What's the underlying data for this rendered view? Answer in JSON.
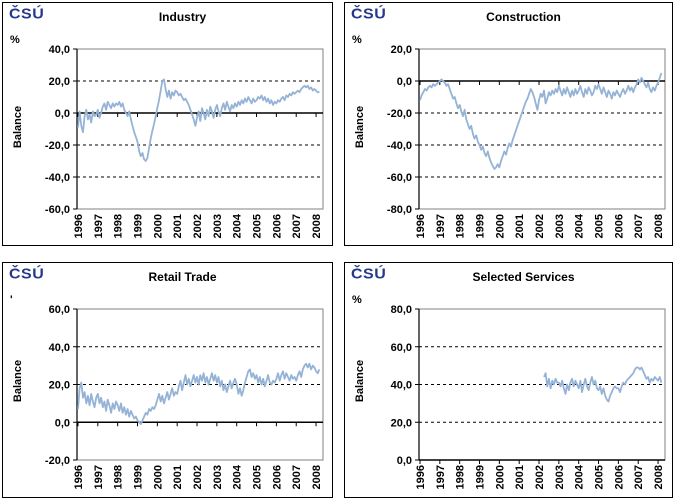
{
  "branding": {
    "logo_text": "ČSÚ",
    "logo_color": "#24388C"
  },
  "colors": {
    "line": "#95B3D7",
    "axis": "#000000",
    "grid": "#000000",
    "plot_border": "#808080",
    "panel_border": "#000000",
    "background": "#ffffff"
  },
  "chart_data": [
    {
      "type": "line",
      "title": "Industry",
      "unit_label": "%",
      "ylabel": "Balance",
      "ylim": [
        -60,
        40
      ],
      "yticks": [
        40,
        20,
        0,
        -20,
        -40,
        -60
      ],
      "ytick_labels": [
        "40,0",
        "20,0",
        "0,0",
        "-20,0",
        "-40,0",
        "-60,0"
      ],
      "xlim": [
        1995.95,
        2008.35
      ],
      "x_tick_labels": [
        "1996",
        "1997",
        "1998",
        "1999",
        "2000",
        "2001",
        "2002",
        "2003",
        "2004",
        "2005",
        "2006",
        "2007",
        "2008"
      ],
      "grid": "dashed-horizontal",
      "legend": "none",
      "series": [
        {
          "start_year": 1996.0,
          "points_per_year": 12,
          "values": [
            -9,
            1,
            -8,
            -12,
            -2,
            2,
            -4,
            -1,
            -6,
            1,
            -2,
            -1,
            2,
            -3,
            0,
            4,
            6,
            2,
            7,
            5,
            3,
            6,
            4,
            6,
            5,
            7,
            4,
            6,
            2,
            0,
            -2,
            1,
            -4,
            -8,
            -12,
            -15,
            -18,
            -24,
            -27,
            -25,
            -29,
            -30,
            -28,
            -22,
            -16,
            -11,
            -7,
            -2,
            3,
            8,
            14,
            20,
            21,
            15,
            10,
            14,
            9,
            13,
            11,
            14,
            13,
            11,
            12,
            10,
            8,
            9,
            7,
            5,
            2,
            -1,
            -4,
            -8,
            -3,
            1,
            -5,
            3,
            0,
            -4,
            2,
            -2,
            4,
            1,
            -3,
            2,
            5,
            1,
            -2,
            3,
            6,
            2,
            7,
            4,
            1,
            5,
            3,
            6,
            4,
            7,
            5,
            8,
            6,
            9,
            7,
            10,
            8,
            6,
            9,
            7,
            8,
            10,
            9,
            11,
            8,
            10,
            7,
            9,
            6,
            8,
            5,
            7,
            6,
            8,
            7,
            9,
            10,
            8,
            11,
            10,
            12,
            11,
            13,
            12,
            13,
            14,
            13,
            15,
            16,
            17,
            16,
            17,
            15,
            16,
            14,
            15,
            14,
            13,
            13
          ]
        }
      ]
    },
    {
      "type": "line",
      "title": "Construction",
      "unit_label": "%",
      "ylabel": "Balance",
      "ylim": [
        -80,
        20
      ],
      "yticks": [
        20,
        0,
        -20,
        -40,
        -60,
        -80
      ],
      "ytick_labels": [
        "20,0",
        "0,0",
        "-20,0",
        "-40,0",
        "-60,0",
        "-80,0"
      ],
      "xlim": [
        1995.95,
        2008.35
      ],
      "x_tick_labels": [
        "1996",
        "1997",
        "1998",
        "1999",
        "2000",
        "2001",
        "2002",
        "2003",
        "2004",
        "2005",
        "2006",
        "2007",
        "2008"
      ],
      "grid": "dashed-horizontal",
      "legend": "none",
      "series": [
        {
          "start_year": 1996.0,
          "points_per_year": 12,
          "values": [
            -12,
            -9,
            -7,
            -5,
            -6,
            -4,
            -3,
            -4,
            -2,
            -3,
            -2,
            -1,
            0,
            1,
            0,
            -1,
            -3,
            -2,
            -5,
            -8,
            -11,
            -10,
            -14,
            -17,
            -15,
            -19,
            -22,
            -18,
            -24,
            -27,
            -30,
            -28,
            -33,
            -36,
            -34,
            -38,
            -40,
            -43,
            -41,
            -45,
            -47,
            -44,
            -48,
            -51,
            -53,
            -55,
            -54,
            -52,
            -54,
            -50,
            -47,
            -44,
            -46,
            -42,
            -39,
            -41,
            -37,
            -34,
            -31,
            -28,
            -25,
            -22,
            -19,
            -16,
            -13,
            -11,
            -8,
            -5,
            -7,
            -10,
            -14,
            -18,
            -12,
            -8,
            -10,
            -6,
            -14,
            -11,
            -7,
            -9,
            -6,
            -8,
            -5,
            -7,
            -3,
            -6,
            -9,
            -5,
            -8,
            -4,
            -7,
            -10,
            -6,
            -9,
            -5,
            -8,
            -6,
            -3,
            -7,
            -10,
            -5,
            -8,
            -4,
            -6,
            -9,
            -7,
            -3,
            -5,
            -2,
            -5,
            -8,
            -4,
            -7,
            -10,
            -6,
            -8,
            -11,
            -7,
            -9,
            -6,
            -8,
            -10,
            -7,
            -5,
            -8,
            -6,
            -3,
            -6,
            -4,
            -7,
            -4,
            -2,
            1,
            -1,
            2,
            0,
            -2,
            -4,
            -1,
            -5,
            -7,
            -4,
            -6,
            -3,
            -1,
            2,
            5
          ]
        }
      ]
    },
    {
      "type": "line",
      "title": "Retail Trade",
      "unit_label": "'",
      "ylabel": "Balance",
      "ylim": [
        -20,
        60
      ],
      "yticks": [
        60,
        40,
        20,
        0,
        -20
      ],
      "ytick_labels": [
        "60,0",
        "40,0",
        "20,0",
        "0,0",
        "-20,0"
      ],
      "xlim": [
        1995.95,
        2008.35
      ],
      "x_tick_labels": [
        "1996",
        "1997",
        "1998",
        "1999",
        "2000",
        "2001",
        "2002",
        "2003",
        "2004",
        "2005",
        "2006",
        "2007",
        "2008"
      ],
      "grid": "dashed-horizontal",
      "legend": "none",
      "series": [
        {
          "start_year": 1996.0,
          "points_per_year": 12,
          "values": [
            7,
            18,
            21,
            13,
            16,
            10,
            14,
            9,
            15,
            11,
            8,
            13,
            15,
            10,
            13,
            8,
            11,
            6,
            12,
            9,
            5,
            10,
            7,
            11,
            9,
            6,
            10,
            5,
            8,
            4,
            7,
            3,
            6,
            4,
            2,
            3,
            1,
            0,
            -1,
            1,
            3,
            5,
            4,
            7,
            6,
            8,
            7,
            9,
            12,
            15,
            11,
            14,
            10,
            13,
            16,
            12,
            15,
            18,
            14,
            16,
            15,
            19,
            22,
            17,
            21,
            25,
            20,
            23,
            19,
            22,
            25,
            21,
            24,
            20,
            25,
            22,
            26,
            21,
            24,
            20,
            23,
            26,
            22,
            25,
            21,
            24,
            19,
            22,
            17,
            20,
            16,
            19,
            22,
            18,
            21,
            23,
            20,
            15,
            18,
            14,
            17,
            21,
            24,
            27,
            28,
            24,
            26,
            23,
            25,
            21,
            24,
            20,
            23,
            19,
            22,
            25,
            21,
            20,
            22,
            21,
            23,
            26,
            22,
            25,
            27,
            23,
            26,
            24,
            22,
            25,
            23,
            24,
            22,
            25,
            27,
            24,
            28,
            30,
            31,
            29,
            31,
            28,
            30,
            29,
            27,
            26,
            28
          ]
        }
      ]
    },
    {
      "type": "line",
      "title": "Selected Services",
      "unit_label": "%",
      "ylabel": "Balance",
      "ylim": [
        0,
        80
      ],
      "yticks": [
        80,
        60,
        40,
        20,
        0
      ],
      "ytick_labels": [
        "80,0",
        "60,0",
        "40,0",
        "20,0",
        "0,0"
      ],
      "xlim": [
        1995.95,
        2008.35
      ],
      "x_tick_labels": [
        "1996",
        "1997",
        "1998",
        "1999",
        "2000",
        "2001",
        "2002",
        "2003",
        "2004",
        "2005",
        "2006",
        "2007",
        "2008"
      ],
      "grid": "dashed-horizontal",
      "legend": "none",
      "series": [
        {
          "start_year": 2002.25,
          "points_per_year": 12,
          "values": [
            44,
            46,
            39,
            43,
            38,
            42,
            40,
            43,
            41,
            41,
            39,
            42,
            38,
            35,
            40,
            37,
            41,
            43,
            39,
            42,
            40,
            38,
            42,
            36,
            40,
            43,
            39,
            37,
            41,
            44,
            40,
            42,
            38,
            37,
            39,
            35,
            38,
            34,
            32,
            31,
            34,
            36,
            38,
            39,
            38,
            38,
            36,
            39,
            41,
            40,
            42,
            43,
            44,
            45,
            46,
            48,
            49,
            49,
            48,
            49,
            47,
            45,
            43,
            44,
            41,
            43,
            42,
            44,
            43,
            42,
            44,
            41
          ]
        }
      ]
    }
  ]
}
